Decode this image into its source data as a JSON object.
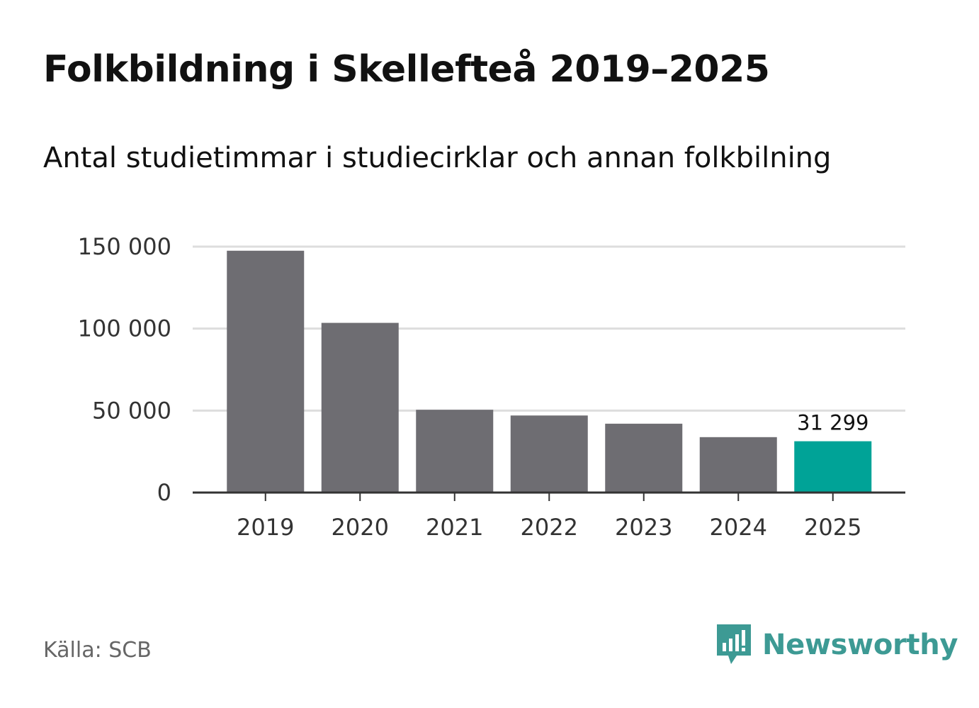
{
  "title": "Folkbildning i Skellefteå 2019–2025",
  "subtitle": "Antal studietimmar i studiecirklar och annan folkbilning",
  "source": "Källa: SCB",
  "brand": {
    "name": "Newsworthy",
    "icon": "newsworthy-logo-icon",
    "color": "#3d9a94"
  },
  "colors": {
    "bar": "#6e6d72",
    "highlight": "#00a397",
    "grid": "#dddddd",
    "axis": "#333333"
  },
  "chart_data": {
    "type": "bar",
    "categories": [
      "2019",
      "2020",
      "2021",
      "2022",
      "2023",
      "2024",
      "2025"
    ],
    "values": [
      147500,
      103500,
      50500,
      47000,
      42000,
      33800,
      31299
    ],
    "highlight_index": 6,
    "data_labels": [
      {
        "index": 6,
        "text": "31 299"
      }
    ],
    "yticks": [
      {
        "value": 0,
        "label": "0"
      },
      {
        "value": 50000,
        "label": "50 000"
      },
      {
        "value": 100000,
        "label": "100 000"
      },
      {
        "value": 150000,
        "label": "150 000"
      }
    ],
    "ylim": [
      0,
      150000
    ],
    "grid": true,
    "xlabel": "",
    "ylabel": ""
  }
}
